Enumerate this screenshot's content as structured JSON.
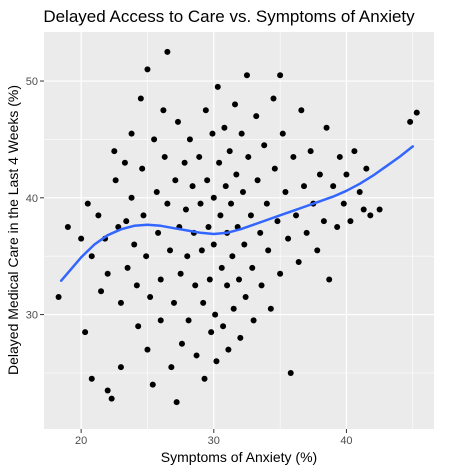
{
  "chart_data": {
    "type": "scatter",
    "title": "Delayed Access to Care vs. Symptoms of Anxiety",
    "xlabel": "Symptoms of Anxiety (%)",
    "ylabel": "Delayed Medical Care in the Last 4 Weeks (%)",
    "xlim": [
      17.2,
      46.6
    ],
    "ylim": [
      20.2,
      54.2
    ],
    "xticks": [
      20,
      30,
      40
    ],
    "xtick_labels": [
      "20",
      "30",
      "40"
    ],
    "yticks": [
      30,
      40,
      50
    ],
    "ytick_labels": [
      "30",
      "40",
      "50"
    ],
    "grid": true,
    "background_color": "#ebebeb",
    "point_color": "#000000",
    "smooth_color": "#3366ff",
    "points": [
      [
        18.3,
        31.5
      ],
      [
        19.0,
        37.5
      ],
      [
        20.0,
        36.5
      ],
      [
        20.3,
        28.5
      ],
      [
        20.5,
        39.5
      ],
      [
        20.8,
        35.0
      ],
      [
        20.8,
        24.5
      ],
      [
        21.3,
        38.5
      ],
      [
        21.8,
        36.5
      ],
      [
        21.5,
        32.0
      ],
      [
        22.0,
        33.5
      ],
      [
        22.0,
        23.5
      ],
      [
        22.3,
        22.8
      ],
      [
        22.5,
        44.0
      ],
      [
        22.6,
        41.5
      ],
      [
        22.8,
        37.5
      ],
      [
        23.0,
        31.0
      ],
      [
        23.0,
        25.5
      ],
      [
        23.3,
        43.0
      ],
      [
        23.4,
        38.0
      ],
      [
        23.5,
        34.0
      ],
      [
        23.8,
        45.5
      ],
      [
        23.8,
        40.0
      ],
      [
        24.0,
        36.0
      ],
      [
        24.2,
        32.5
      ],
      [
        24.3,
        29.0
      ],
      [
        24.5,
        48.5
      ],
      [
        24.6,
        42.5
      ],
      [
        24.7,
        38.5
      ],
      [
        24.9,
        35.0
      ],
      [
        25.0,
        51.0
      ],
      [
        25.0,
        27.0
      ],
      [
        25.2,
        31.5
      ],
      [
        25.4,
        24.0
      ],
      [
        25.5,
        45.0
      ],
      [
        25.7,
        40.5
      ],
      [
        25.8,
        37.0
      ],
      [
        26.0,
        33.0
      ],
      [
        26.0,
        29.5
      ],
      [
        26.2,
        47.5
      ],
      [
        26.3,
        43.5
      ],
      [
        26.5,
        52.5
      ],
      [
        26.5,
        39.5
      ],
      [
        26.7,
        35.5
      ],
      [
        26.8,
        25.5
      ],
      [
        27.0,
        31.0
      ],
      [
        27.1,
        41.5
      ],
      [
        27.2,
        22.5
      ],
      [
        27.3,
        46.5
      ],
      [
        27.4,
        37.5
      ],
      [
        27.5,
        33.5
      ],
      [
        27.6,
        27.5
      ],
      [
        27.8,
        43.0
      ],
      [
        27.9,
        39.0
      ],
      [
        28.0,
        35.0
      ],
      [
        28.1,
        29.5
      ],
      [
        28.2,
        45.0
      ],
      [
        28.4,
        41.0
      ],
      [
        28.5,
        37.0
      ],
      [
        28.6,
        32.5
      ],
      [
        28.7,
        26.5
      ],
      [
        28.9,
        43.5
      ],
      [
        29.0,
        39.5
      ],
      [
        29.1,
        35.5
      ],
      [
        29.2,
        31.0
      ],
      [
        29.3,
        24.5
      ],
      [
        29.4,
        47.5
      ],
      [
        29.5,
        41.5
      ],
      [
        29.6,
        37.5
      ],
      [
        29.7,
        33.0
      ],
      [
        29.8,
        28.5
      ],
      [
        29.9,
        45.5
      ],
      [
        30.0,
        40.0
      ],
      [
        30.0,
        36.0
      ],
      [
        30.1,
        30.0
      ],
      [
        30.2,
        26.0
      ],
      [
        30.3,
        49.5
      ],
      [
        30.4,
        43.0
      ],
      [
        30.5,
        38.5
      ],
      [
        30.6,
        34.0
      ],
      [
        30.7,
        29.0
      ],
      [
        30.8,
        46.0
      ],
      [
        30.9,
        41.0
      ],
      [
        31.0,
        37.0
      ],
      [
        31.0,
        32.5
      ],
      [
        31.1,
        27.0
      ],
      [
        31.2,
        44.0
      ],
      [
        31.3,
        39.5
      ],
      [
        31.4,
        35.0
      ],
      [
        31.5,
        30.5
      ],
      [
        31.6,
        48.0
      ],
      [
        31.7,
        42.0
      ],
      [
        31.8,
        37.5
      ],
      [
        31.9,
        33.0
      ],
      [
        32.0,
        28.0
      ],
      [
        32.1,
        45.5
      ],
      [
        32.2,
        40.5
      ],
      [
        32.3,
        36.0
      ],
      [
        32.4,
        31.5
      ],
      [
        32.5,
        50.5
      ],
      [
        32.6,
        43.5
      ],
      [
        32.8,
        38.5
      ],
      [
        32.9,
        34.0
      ],
      [
        33.0,
        29.5
      ],
      [
        33.2,
        47.0
      ],
      [
        33.3,
        41.5
      ],
      [
        33.5,
        37.0
      ],
      [
        33.6,
        32.5
      ],
      [
        33.8,
        44.5
      ],
      [
        34.0,
        39.5
      ],
      [
        34.1,
        35.5
      ],
      [
        34.3,
        30.5
      ],
      [
        34.5,
        48.5
      ],
      [
        34.6,
        42.5
      ],
      [
        34.8,
        38.0
      ],
      [
        35.0,
        50.5
      ],
      [
        35.0,
        33.5
      ],
      [
        35.2,
        45.5
      ],
      [
        35.4,
        40.5
      ],
      [
        35.6,
        36.5
      ],
      [
        35.8,
        25.0
      ],
      [
        36.0,
        43.5
      ],
      [
        36.2,
        38.5
      ],
      [
        36.4,
        34.5
      ],
      [
        36.6,
        47.5
      ],
      [
        36.8,
        41.0
      ],
      [
        37.0,
        37.0
      ],
      [
        37.3,
        44.0
      ],
      [
        37.5,
        39.5
      ],
      [
        37.8,
        35.5
      ],
      [
        38.0,
        42.0
      ],
      [
        38.3,
        38.0
      ],
      [
        38.5,
        46.0
      ],
      [
        38.7,
        33.0
      ],
      [
        39.0,
        41.0
      ],
      [
        39.3,
        37.5
      ],
      [
        39.5,
        43.5
      ],
      [
        39.8,
        39.5
      ],
      [
        40.0,
        42.0
      ],
      [
        40.3,
        38.0
      ],
      [
        40.6,
        44.0
      ],
      [
        41.0,
        40.5
      ],
      [
        41.3,
        39.0
      ],
      [
        41.5,
        42.5
      ],
      [
        41.8,
        38.5
      ],
      [
        42.5,
        39.0
      ],
      [
        44.8,
        46.5
      ],
      [
        45.3,
        47.3
      ]
    ],
    "smooth_line": [
      [
        18.5,
        32.9
      ],
      [
        20.0,
        34.9
      ],
      [
        21.0,
        36.0
      ],
      [
        22.0,
        36.8
      ],
      [
        23.0,
        37.3
      ],
      [
        24.0,
        37.6
      ],
      [
        25.0,
        37.7
      ],
      [
        26.0,
        37.6
      ],
      [
        27.0,
        37.4
      ],
      [
        28.0,
        37.2
      ],
      [
        29.0,
        37.0
      ],
      [
        30.0,
        36.9
      ],
      [
        31.0,
        37.0
      ],
      [
        32.0,
        37.3
      ],
      [
        33.0,
        37.7
      ],
      [
        34.0,
        38.1
      ],
      [
        35.0,
        38.5
      ],
      [
        36.0,
        38.9
      ],
      [
        37.0,
        39.3
      ],
      [
        38.0,
        39.7
      ],
      [
        39.0,
        40.1
      ],
      [
        40.0,
        40.6
      ],
      [
        41.0,
        41.2
      ],
      [
        42.0,
        41.9
      ],
      [
        43.0,
        42.7
      ],
      [
        44.0,
        43.5
      ],
      [
        45.0,
        44.4
      ]
    ]
  }
}
